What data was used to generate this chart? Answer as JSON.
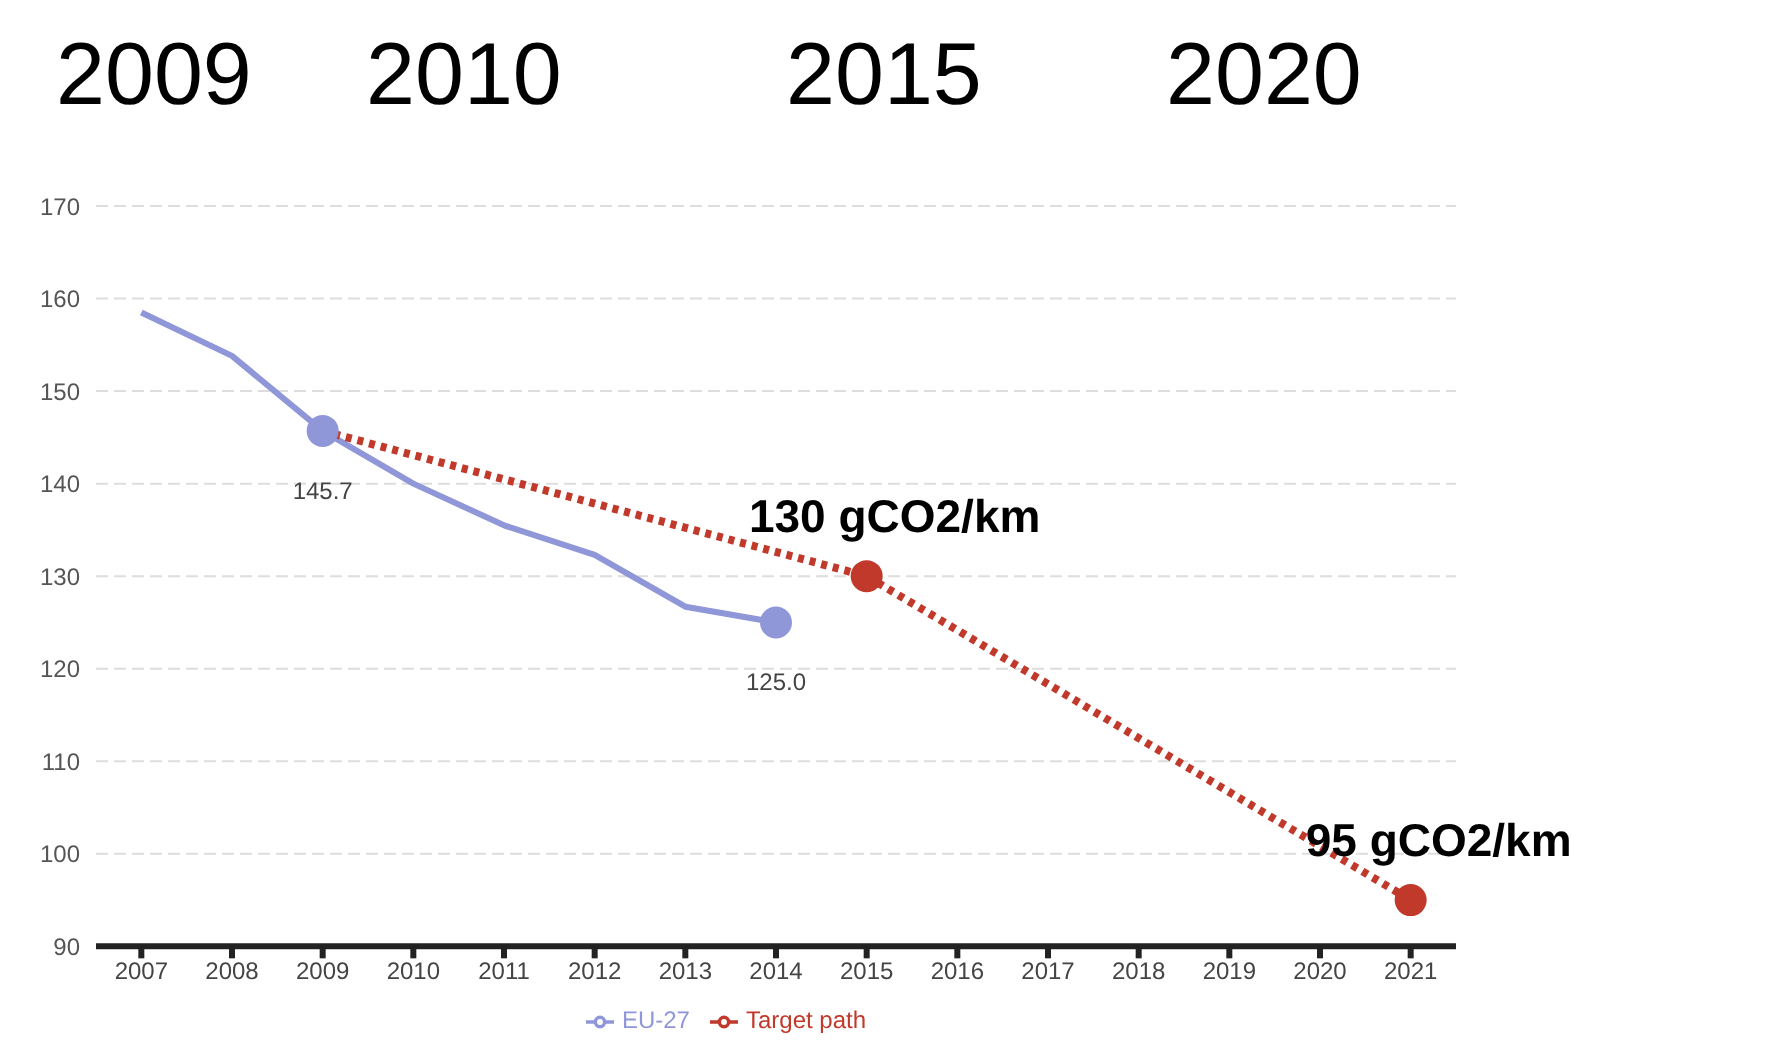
{
  "chart_data": {
    "type": "line",
    "categories": [
      "2007",
      "2008",
      "2009",
      "2010",
      "2011",
      "2012",
      "2013",
      "2014",
      "2015",
      "2016",
      "2017",
      "2018",
      "2019",
      "2020",
      "2021"
    ],
    "series": [
      {
        "name": "EU-27",
        "color": "#8f97d8",
        "line_style": "solid",
        "values": [
          158.5,
          153.8,
          145.7,
          140,
          135.5,
          132.3,
          126.7,
          125.0,
          null,
          null,
          null,
          null,
          null,
          null,
          null
        ],
        "value_labels": [
          null,
          null,
          "145.7",
          null,
          null,
          null,
          null,
          "125.0",
          null,
          null,
          null,
          null,
          null,
          null,
          null
        ]
      },
      {
        "name": "Target path",
        "color": "#c0392b",
        "line_style": "dotted",
        "values": [
          null,
          null,
          145.7,
          null,
          null,
          null,
          null,
          null,
          130,
          null,
          null,
          null,
          null,
          null,
          95
        ],
        "value_labels": [
          null,
          null,
          null,
          null,
          null,
          null,
          null,
          null,
          "130 gCO2/km",
          null,
          null,
          null,
          null,
          null,
          "95 gCO2/km"
        ]
      }
    ],
    "ylim": [
      90,
      170
    ],
    "yticks": [
      90,
      100,
      110,
      120,
      130,
      140,
      150,
      160,
      170
    ],
    "grid": "y",
    "legend": "bottom",
    "annotations": [
      "2009",
      "2010",
      "2015",
      "2020"
    ]
  }
}
